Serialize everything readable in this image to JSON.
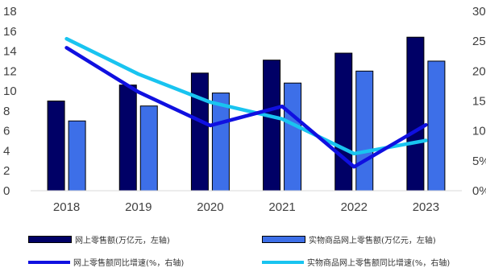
{
  "chart_data": {
    "type": "bar",
    "categories": [
      "2018",
      "2019",
      "2020",
      "2021",
      "2022",
      "2023"
    ],
    "left_axis": {
      "ylim": [
        0,
        18
      ],
      "ticks": [
        "0",
        "2",
        "4",
        "6",
        "8",
        "10",
        "12",
        "14",
        "16",
        "18"
      ]
    },
    "right_axis": {
      "ylim": [
        0,
        30
      ],
      "ticks": [
        "0%",
        "5%",
        "10%",
        "15%",
        "20%",
        "25%",
        "30%"
      ]
    },
    "series": [
      {
        "name": "网上零售额(万亿元，左轴)",
        "kind": "bar",
        "axis": "left",
        "color": "#000066",
        "values": [
          9.0,
          10.6,
          11.8,
          13.1,
          13.8,
          15.4
        ]
      },
      {
        "name": "实物商品网上零售额(万亿元，左轴)",
        "kind": "bar",
        "axis": "left",
        "color": "#3D6FE8",
        "values": [
          7.0,
          8.5,
          9.8,
          10.8,
          12.0,
          13.0
        ]
      },
      {
        "name": "网上零售额同比增速(%，右轴)",
        "kind": "line",
        "axis": "right",
        "color": "#1010E0",
        "values": [
          23.9,
          16.5,
          10.9,
          14.1,
          4.0,
          11.0
        ]
      },
      {
        "name": "实物商品网上零售额同比增速(%，右轴)",
        "kind": "line",
        "axis": "right",
        "color": "#19C4F0",
        "values": [
          25.4,
          19.5,
          14.8,
          12.0,
          6.2,
          8.4
        ]
      }
    ],
    "grid": false,
    "legend_position": "bottom"
  }
}
